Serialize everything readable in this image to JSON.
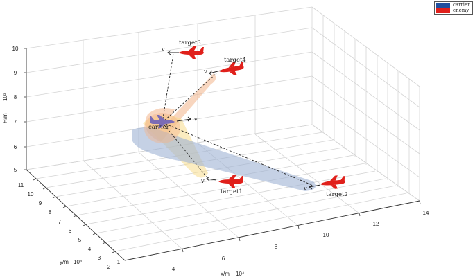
{
  "legend": {
    "items": [
      {
        "label": "carrier",
        "color": "#1f4e9e"
      },
      {
        "label": "enemy",
        "color": "#e0201b"
      }
    ]
  },
  "axes": {
    "z_label": "H/m",
    "z_exp": "10³",
    "y_label": "y/m",
    "y_exp": "10⁴",
    "x_label": "x/m",
    "x_exp": "10⁴",
    "z_ticks": [
      "10",
      "9",
      "8",
      "7",
      "6",
      "5"
    ],
    "y_ticks": [
      "11",
      "10",
      "9",
      "8",
      "7",
      "6",
      "5",
      "4",
      "3",
      "2",
      "1"
    ],
    "x_ticks": [
      "4",
      "6",
      "8",
      "10",
      "12",
      "14"
    ]
  },
  "entities": {
    "carrier": {
      "label": "carrier",
      "velocity_label": "v",
      "color": "#7b6bb5"
    },
    "targets": [
      {
        "label": "target1",
        "velocity_label": "v"
      },
      {
        "label": "target2",
        "velocity_label": "v"
      },
      {
        "label": "target3",
        "velocity_label": "v"
      },
      {
        "label": "target4",
        "velocity_label": "v"
      }
    ]
  },
  "colors": {
    "enemy_plane": "#e0201b",
    "carrier_plane": "#7b6bb5",
    "cone_orange": "#f3b48a",
    "cone_yellow": "#f7dc8c",
    "cone_blue": "#9fb2d3",
    "grid": "#d4d4d4",
    "axis": "#333333"
  }
}
